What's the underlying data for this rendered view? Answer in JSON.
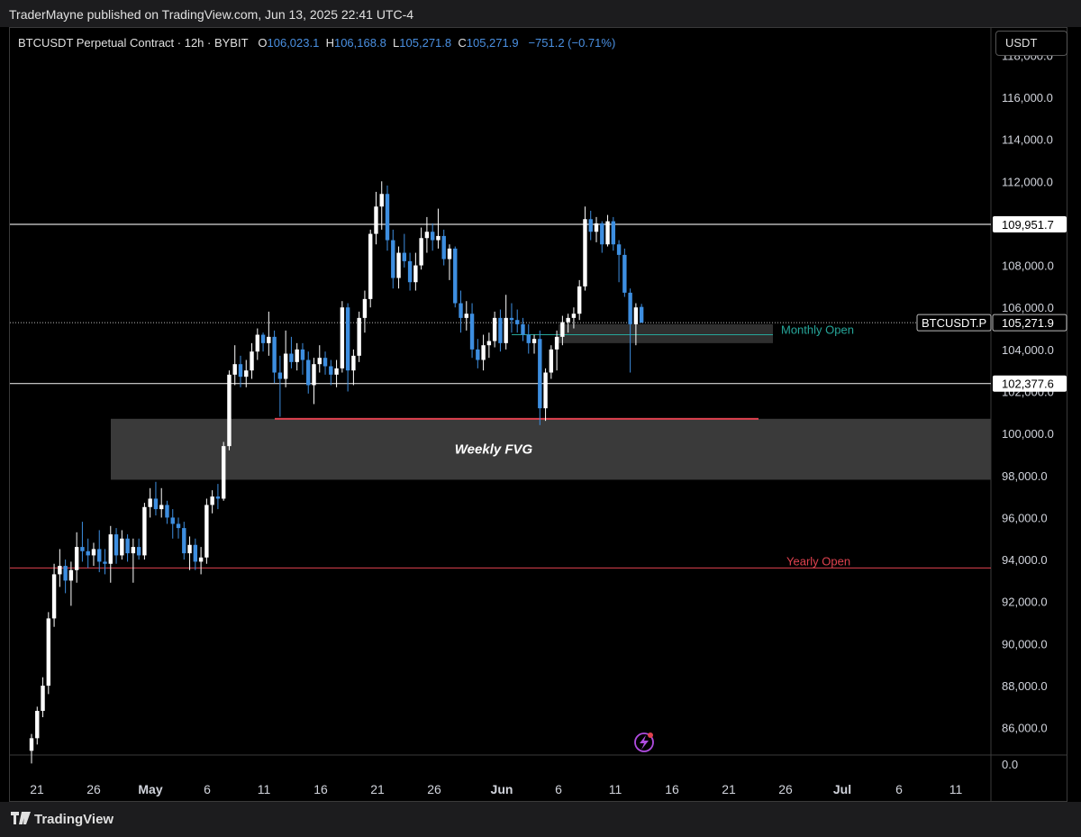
{
  "header": {
    "published": "TraderMayne published on TradingView.com, Jun 13, 2025 22:41 UTC-4"
  },
  "legend": {
    "title": "BTCUSDT Perpetual Contract · 12h · BYBIT",
    "o_label": "O",
    "o_value": "106,023.1",
    "h_label": "H",
    "h_value": "106,168.8",
    "l_label": "L",
    "l_value": "105,271.8",
    "c_label": "C",
    "c_value": "105,271.9",
    "change": "−751.2 (−0.71%)"
  },
  "currency_button": "USDT",
  "brand": "TradingView",
  "colors": {
    "up": "#ffffff",
    "down": "#3d8ee0",
    "level": "#d8d8d8",
    "monthly": "#26a69a",
    "yearly": "#e0424f",
    "fvg": "#3a3a3a"
  },
  "chart_data": {
    "type": "candlestick",
    "y_axis": {
      "ylim": [
        84700,
        119300
      ],
      "ticks": [
        "118,000.0",
        "116,000.0",
        "114,000.0",
        "112,000.0",
        "108,000.0",
        "106,000.0",
        "104,000.0",
        "102,000.0",
        "100,000.0",
        "98,000.0",
        "96,000.0",
        "94,000.0",
        "92,000.0",
        "90,000.0",
        "88,000.0",
        "86,000.0"
      ],
      "tick_values": [
        118000,
        116000,
        114000,
        112000,
        108000,
        106000,
        104000,
        102000,
        100000,
        98000,
        96000,
        94000,
        92000,
        90000,
        88000,
        86000
      ],
      "bottom_label": "0.0"
    },
    "x_axis": {
      "labels": [
        "21",
        "26",
        "May",
        "6",
        "11",
        "16",
        "21",
        "26",
        "Jun",
        "6",
        "11",
        "16",
        "21",
        "26",
        "Jul",
        "6",
        "11"
      ],
      "label_dates": [
        "Apr 21",
        "Apr 26",
        "May 1",
        "May 6",
        "May 11",
        "May 16",
        "May 21",
        "May 26",
        "Jun 1",
        "Jun 6",
        "Jun 11",
        "Jun 16",
        "Jun 21",
        "Jun 26",
        "Jul 1",
        "Jul 6",
        "Jul 11"
      ]
    },
    "candles": [
      {
        "d": "Apr 21 00h",
        "o": 84900,
        "h": 85700,
        "l": 84300,
        "c": 85500
      },
      {
        "d": "Apr 21 12h",
        "o": 85500,
        "h": 87000,
        "l": 85200,
        "c": 86800
      },
      {
        "d": "Apr 22 00h",
        "o": 86800,
        "h": 88400,
        "l": 86500,
        "c": 88000
      },
      {
        "d": "Apr 22 12h",
        "o": 88000,
        "h": 91500,
        "l": 87600,
        "c": 91200
      },
      {
        "d": "Apr 23 00h",
        "o": 91200,
        "h": 93800,
        "l": 90800,
        "c": 93300
      },
      {
        "d": "Apr 23 12h",
        "o": 93300,
        "h": 94500,
        "l": 92700,
        "c": 93700
      },
      {
        "d": "Apr 24 00h",
        "o": 93700,
        "h": 94000,
        "l": 92400,
        "c": 93000
      },
      {
        "d": "Apr 24 12h",
        "o": 93000,
        "h": 93900,
        "l": 91800,
        "c": 93500
      },
      {
        "d": "Apr 25 00h",
        "o": 93500,
        "h": 95300,
        "l": 92900,
        "c": 94600
      },
      {
        "d": "Apr 25 12h",
        "o": 94600,
        "h": 95800,
        "l": 93900,
        "c": 94400
      },
      {
        "d": "Apr 26 00h",
        "o": 94400,
        "h": 95000,
        "l": 93600,
        "c": 94200
      },
      {
        "d": "Apr 26 12h",
        "o": 94200,
        "h": 94800,
        "l": 93700,
        "c": 94500
      },
      {
        "d": "Apr 27 00h",
        "o": 94500,
        "h": 95400,
        "l": 93400,
        "c": 93900
      },
      {
        "d": "Apr 27 12h",
        "o": 93900,
        "h": 94500,
        "l": 93300,
        "c": 93800
      },
      {
        "d": "Apr 28 00h",
        "o": 93800,
        "h": 95600,
        "l": 92900,
        "c": 95200
      },
      {
        "d": "Apr 28 12h",
        "o": 95200,
        "h": 95500,
        "l": 93800,
        "c": 94200
      },
      {
        "d": "Apr 29 00h",
        "o": 94200,
        "h": 95400,
        "l": 94000,
        "c": 95000
      },
      {
        "d": "Apr 29 12h",
        "o": 95000,
        "h": 95200,
        "l": 93900,
        "c": 94300
      },
      {
        "d": "Apr 30 00h",
        "o": 94300,
        "h": 95000,
        "l": 92900,
        "c": 94600
      },
      {
        "d": "Apr 30 12h",
        "o": 94600,
        "h": 95000,
        "l": 94000,
        "c": 94200
      },
      {
        "d": "May 1 00h",
        "o": 94200,
        "h": 96700,
        "l": 94000,
        "c": 96500
      },
      {
        "d": "May 1 12h",
        "o": 96500,
        "h": 97400,
        "l": 96000,
        "c": 96900
      },
      {
        "d": "May 2 00h",
        "o": 96900,
        "h": 97700,
        "l": 96100,
        "c": 96400
      },
      {
        "d": "May 2 12h",
        "o": 96400,
        "h": 97400,
        "l": 96000,
        "c": 96600
      },
      {
        "d": "May 3 00h",
        "o": 96600,
        "h": 96800,
        "l": 95700,
        "c": 96000
      },
      {
        "d": "May 3 12h",
        "o": 96000,
        "h": 96400,
        "l": 95000,
        "c": 95700
      },
      {
        "d": "May 4 00h",
        "o": 95700,
        "h": 96000,
        "l": 95000,
        "c": 95500
      },
      {
        "d": "May 4 12h",
        "o": 95500,
        "h": 95800,
        "l": 94000,
        "c": 94300
      },
      {
        "d": "May 5 00h",
        "o": 94300,
        "h": 95100,
        "l": 93500,
        "c": 94700
      },
      {
        "d": "May 5 12h",
        "o": 94700,
        "h": 95000,
        "l": 93500,
        "c": 93900
      },
      {
        "d": "May 6 00h",
        "o": 93900,
        "h": 94600,
        "l": 93300,
        "c": 94100
      },
      {
        "d": "May 6 12h",
        "o": 94100,
        "h": 96900,
        "l": 93800,
        "c": 96600
      },
      {
        "d": "May 7 00h",
        "o": 96600,
        "h": 97300,
        "l": 96200,
        "c": 97000
      },
      {
        "d": "May 7 12h",
        "o": 97000,
        "h": 97600,
        "l": 96400,
        "c": 96900
      },
      {
        "d": "May 8 00h",
        "o": 96900,
        "h": 99600,
        "l": 96800,
        "c": 99400
      },
      {
        "d": "May 8 12h",
        "o": 99400,
        "h": 103000,
        "l": 99200,
        "c": 102800
      },
      {
        "d": "May 9 00h",
        "o": 102800,
        "h": 104200,
        "l": 102300,
        "c": 103300
      },
      {
        "d": "May 9 12h",
        "o": 103300,
        "h": 103700,
        "l": 102200,
        "c": 102700
      },
      {
        "d": "May 10 00h",
        "o": 102700,
        "h": 103500,
        "l": 102200,
        "c": 103000
      },
      {
        "d": "May 10 12h",
        "o": 103000,
        "h": 104300,
        "l": 102600,
        "c": 103900
      },
      {
        "d": "May 11 00h",
        "o": 103900,
        "h": 105000,
        "l": 103500,
        "c": 104700
      },
      {
        "d": "May 11 12h",
        "o": 104700,
        "h": 104800,
        "l": 103900,
        "c": 104300
      },
      {
        "d": "May 12 00h",
        "o": 104300,
        "h": 105800,
        "l": 103700,
        "c": 104600
      },
      {
        "d": "May 12 12h",
        "o": 104600,
        "h": 104900,
        "l": 102400,
        "c": 102900
      },
      {
        "d": "May 13 00h",
        "o": 102900,
        "h": 103700,
        "l": 100800,
        "c": 102600
      },
      {
        "d": "May 13 12h",
        "o": 102600,
        "h": 104900,
        "l": 102200,
        "c": 103800
      },
      {
        "d": "May 14 00h",
        "o": 103800,
        "h": 104600,
        "l": 103100,
        "c": 103400
      },
      {
        "d": "May 14 12h",
        "o": 103400,
        "h": 104300,
        "l": 103000,
        "c": 104000
      },
      {
        "d": "May 15 00h",
        "o": 104000,
        "h": 104300,
        "l": 102800,
        "c": 103500
      },
      {
        "d": "May 15 12h",
        "o": 103500,
        "h": 103900,
        "l": 101900,
        "c": 102300
      },
      {
        "d": "May 16 00h",
        "o": 102300,
        "h": 103600,
        "l": 101400,
        "c": 103300
      },
      {
        "d": "May 16 12h",
        "o": 103300,
        "h": 104200,
        "l": 102900,
        "c": 103600
      },
      {
        "d": "May 17 00h",
        "o": 103600,
        "h": 103900,
        "l": 102800,
        "c": 103200
      },
      {
        "d": "May 17 12h",
        "o": 103200,
        "h": 103500,
        "l": 102300,
        "c": 102800
      },
      {
        "d": "May 18 00h",
        "o": 102800,
        "h": 103500,
        "l": 102200,
        "c": 103100
      },
      {
        "d": "May 18 12h",
        "o": 103100,
        "h": 106300,
        "l": 102900,
        "c": 106000
      },
      {
        "d": "May 19 00h",
        "o": 106000,
        "h": 106200,
        "l": 102000,
        "c": 103000
      },
      {
        "d": "May 19 12h",
        "o": 103000,
        "h": 104000,
        "l": 102300,
        "c": 103700
      },
      {
        "d": "May 20 00h",
        "o": 103700,
        "h": 105800,
        "l": 103400,
        "c": 105500
      },
      {
        "d": "May 20 12h",
        "o": 105500,
        "h": 106800,
        "l": 104800,
        "c": 106400
      },
      {
        "d": "May 21 00h",
        "o": 106400,
        "h": 109700,
        "l": 106000,
        "c": 109500
      },
      {
        "d": "May 21 12h",
        "o": 109500,
        "h": 111500,
        "l": 109000,
        "c": 110800
      },
      {
        "d": "May 22 00h",
        "o": 110800,
        "h": 112000,
        "l": 109700,
        "c": 111400
      },
      {
        "d": "May 22 12h",
        "o": 111400,
        "h": 111800,
        "l": 108700,
        "c": 109200
      },
      {
        "d": "May 23 00h",
        "o": 109200,
        "h": 109700,
        "l": 106900,
        "c": 107400
      },
      {
        "d": "May 23 12h",
        "o": 107400,
        "h": 108900,
        "l": 106900,
        "c": 108600
      },
      {
        "d": "May 24 00h",
        "o": 108600,
        "h": 109500,
        "l": 107900,
        "c": 108200
      },
      {
        "d": "May 24 12h",
        "o": 108200,
        "h": 108600,
        "l": 106800,
        "c": 107200
      },
      {
        "d": "May 25 00h",
        "o": 107200,
        "h": 108600,
        "l": 106800,
        "c": 108000
      },
      {
        "d": "May 25 12h",
        "o": 108000,
        "h": 109800,
        "l": 107800,
        "c": 109300
      },
      {
        "d": "May 26 00h",
        "o": 109300,
        "h": 110300,
        "l": 108600,
        "c": 109600
      },
      {
        "d": "May 26 12h",
        "o": 109600,
        "h": 110000,
        "l": 108700,
        "c": 109200
      },
      {
        "d": "May 27 00h",
        "o": 109200,
        "h": 110700,
        "l": 108800,
        "c": 109400
      },
      {
        "d": "May 27 12h",
        "o": 109400,
        "h": 109700,
        "l": 108000,
        "c": 108300
      },
      {
        "d": "May 28 00h",
        "o": 108300,
        "h": 109000,
        "l": 107300,
        "c": 108800
      },
      {
        "d": "May 28 12h",
        "o": 108800,
        "h": 108900,
        "l": 106000,
        "c": 106200
      },
      {
        "d": "May 29 00h",
        "o": 106200,
        "h": 106800,
        "l": 104800,
        "c": 105500
      },
      {
        "d": "May 29 12h",
        "o": 105500,
        "h": 106300,
        "l": 104900,
        "c": 105700
      },
      {
        "d": "May 30 00h",
        "o": 105700,
        "h": 106200,
        "l": 103600,
        "c": 104000
      },
      {
        "d": "May 30 12h",
        "o": 104000,
        "h": 104500,
        "l": 103100,
        "c": 103500
      },
      {
        "d": "May 31 00h",
        "o": 103500,
        "h": 104700,
        "l": 103000,
        "c": 104200
      },
      {
        "d": "May 31 12h",
        "o": 104200,
        "h": 104800,
        "l": 103600,
        "c": 104400
      },
      {
        "d": "Jun 1 00h",
        "o": 104400,
        "h": 105800,
        "l": 104100,
        "c": 105500
      },
      {
        "d": "Jun 1 12h",
        "o": 105500,
        "h": 105900,
        "l": 103900,
        "c": 104300
      },
      {
        "d": "Jun 2 00h",
        "o": 104300,
        "h": 106600,
        "l": 104000,
        "c": 105500
      },
      {
        "d": "Jun 2 12h",
        "o": 105500,
        "h": 106200,
        "l": 104800,
        "c": 105400
      },
      {
        "d": "Jun 3 00h",
        "o": 105400,
        "h": 105900,
        "l": 104800,
        "c": 105200
      },
      {
        "d": "Jun 3 12h",
        "o": 105200,
        "h": 105500,
        "l": 104400,
        "c": 104700
      },
      {
        "d": "Jun 4 00h",
        "o": 104700,
        "h": 105200,
        "l": 103800,
        "c": 104300
      },
      {
        "d": "Jun 4 12h",
        "o": 104300,
        "h": 104700,
        "l": 103800,
        "c": 104500
      },
      {
        "d": "Jun 5 00h",
        "o": 104500,
        "h": 104900,
        "l": 100400,
        "c": 101200
      },
      {
        "d": "Jun 5 12h",
        "o": 101200,
        "h": 103100,
        "l": 100600,
        "c": 102900
      },
      {
        "d": "Jun 6 00h",
        "o": 102900,
        "h": 104200,
        "l": 102600,
        "c": 104000
      },
      {
        "d": "Jun 6 12h",
        "o": 104000,
        "h": 104900,
        "l": 103000,
        "c": 104600
      },
      {
        "d": "Jun 7 00h",
        "o": 104600,
        "h": 105600,
        "l": 104200,
        "c": 105300
      },
      {
        "d": "Jun 7 12h",
        "o": 105300,
        "h": 105700,
        "l": 104800,
        "c": 105500
      },
      {
        "d": "Jun 8 00h",
        "o": 105500,
        "h": 106000,
        "l": 105000,
        "c": 105700
      },
      {
        "d": "Jun 8 12h",
        "o": 105700,
        "h": 107300,
        "l": 105400,
        "c": 107000
      },
      {
        "d": "Jun 9 00h",
        "o": 107000,
        "h": 110800,
        "l": 106800,
        "c": 110200
      },
      {
        "d": "Jun 9 12h",
        "o": 110200,
        "h": 110600,
        "l": 109200,
        "c": 109600
      },
      {
        "d": "Jun 10 00h",
        "o": 109600,
        "h": 110300,
        "l": 109100,
        "c": 110000
      },
      {
        "d": "Jun 10 12h",
        "o": 110000,
        "h": 110100,
        "l": 108600,
        "c": 109000
      },
      {
        "d": "Jun 11 00h",
        "o": 109000,
        "h": 110400,
        "l": 108900,
        "c": 110100
      },
      {
        "d": "Jun 11 12h",
        "o": 110100,
        "h": 110300,
        "l": 108700,
        "c": 109000
      },
      {
        "d": "Jun 12 00h",
        "o": 109000,
        "h": 109200,
        "l": 107200,
        "c": 108500
      },
      {
        "d": "Jun 12 12h",
        "o": 108500,
        "h": 108800,
        "l": 106500,
        "c": 106700
      },
      {
        "d": "Jun 13 00h",
        "o": 106700,
        "h": 106900,
        "l": 102900,
        "c": 105200
      },
      {
        "d": "Jun 13 12h",
        "o": 105200,
        "h": 106200,
        "l": 104200,
        "c": 106000
      },
      {
        "d": "Jun 14 00h",
        "o": 106023.1,
        "h": 106168.8,
        "l": 105271.8,
        "c": 105271.9
      }
    ],
    "levels": [
      {
        "price": 109951.7,
        "label": "109,951.7",
        "kind": "white"
      },
      {
        "price": 102377.6,
        "label": "102,377.6",
        "kind": "white"
      }
    ],
    "current_price": {
      "price": 105271.9,
      "symbol": "BTCUSDT.P",
      "label": "105,271.9"
    },
    "annotations": {
      "weekly_fvg": {
        "label": "Weekly FVG",
        "from": 97800,
        "to": 100700
      },
      "red_line": {
        "price": 100700
      },
      "monthly_open": {
        "price": 104700,
        "label": "Monthly Open"
      },
      "yearly_open": {
        "price": 93600,
        "label": "Yearly Open"
      },
      "gray_zone": {
        "from": 104300,
        "to": 105200
      }
    }
  }
}
